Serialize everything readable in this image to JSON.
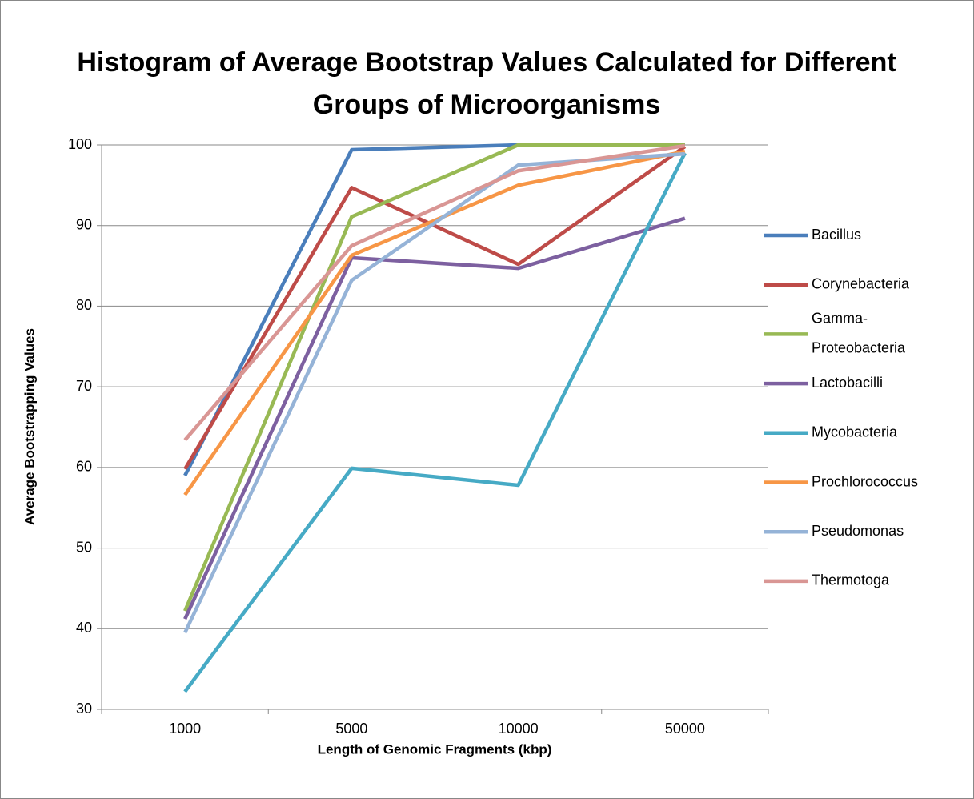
{
  "chart_data": {
    "type": "line",
    "title": "Histogram of Average Bootstrap Values Calculated for Different Groups of Microorganisms",
    "x_label": "Length of Genomic Fragments (kbp)",
    "y_label": "Average Bootstrapping Values",
    "categories": [
      "1000",
      "5000",
      "10000",
      "50000"
    ],
    "series": [
      {
        "name": "Bacillus",
        "color": "#4a7ebb",
        "values": [
          59,
          99.4,
          100,
          100
        ]
      },
      {
        "name": "Corynebacteria",
        "color": "#be4b48",
        "values": [
          59.8,
          94.7,
          85.2,
          99.8
        ]
      },
      {
        "name": "Gamma-Proteobacteria",
        "color": "#98b954",
        "values": [
          42.2,
          91.1,
          100,
          100
        ]
      },
      {
        "name": "Lactobacilli",
        "color": "#7d60a0",
        "values": [
          41.2,
          86,
          84.7,
          90.9
        ]
      },
      {
        "name": "Mycobacteria",
        "color": "#46aac5",
        "values": [
          32.2,
          59.9,
          57.8,
          99
        ]
      },
      {
        "name": "Prochlorococcus",
        "color": "#f79646",
        "values": [
          56.6,
          86.3,
          95,
          99.2
        ]
      },
      {
        "name": "Pseudomonas",
        "color": "#95b3d7",
        "values": [
          39.5,
          83.2,
          97.5,
          98.9
        ]
      },
      {
        "name": "Thermotoga",
        "color": "#d99694",
        "values": [
          63.4,
          87.5,
          96.8,
          99.9
        ]
      }
    ],
    "ylim": [
      30,
      100
    ],
    "yticks": [
      30,
      40,
      50,
      60,
      70,
      80,
      90,
      100
    ],
    "grid": true,
    "legend": "right"
  }
}
